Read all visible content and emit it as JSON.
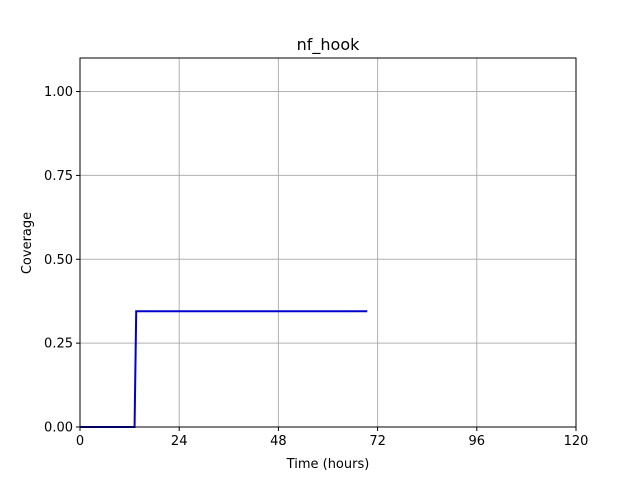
{
  "chart_data": {
    "type": "line",
    "title": "nf_hook",
    "xlabel": "Time (hours)",
    "ylabel": "Coverage",
    "xlim": [
      0,
      120
    ],
    "ylim": [
      0,
      1.1
    ],
    "xticks": [
      0,
      24,
      48,
      72,
      96,
      120
    ],
    "xtick_labels": [
      "0",
      "24",
      "48",
      "72",
      "96",
      "120"
    ],
    "yticks": [
      0,
      0.25,
      0.5,
      0.75,
      1.0
    ],
    "ytick_labels": [
      "0.00",
      "0.25",
      "0.50",
      "0.75",
      "1.00"
    ],
    "grid": true,
    "series": [
      {
        "name": "coverage",
        "color": "#0000cc",
        "step": true,
        "x": [
          0,
          13.2,
          13.6,
          69.5
        ],
        "y": [
          0,
          0,
          0.345,
          0.345
        ]
      }
    ]
  }
}
